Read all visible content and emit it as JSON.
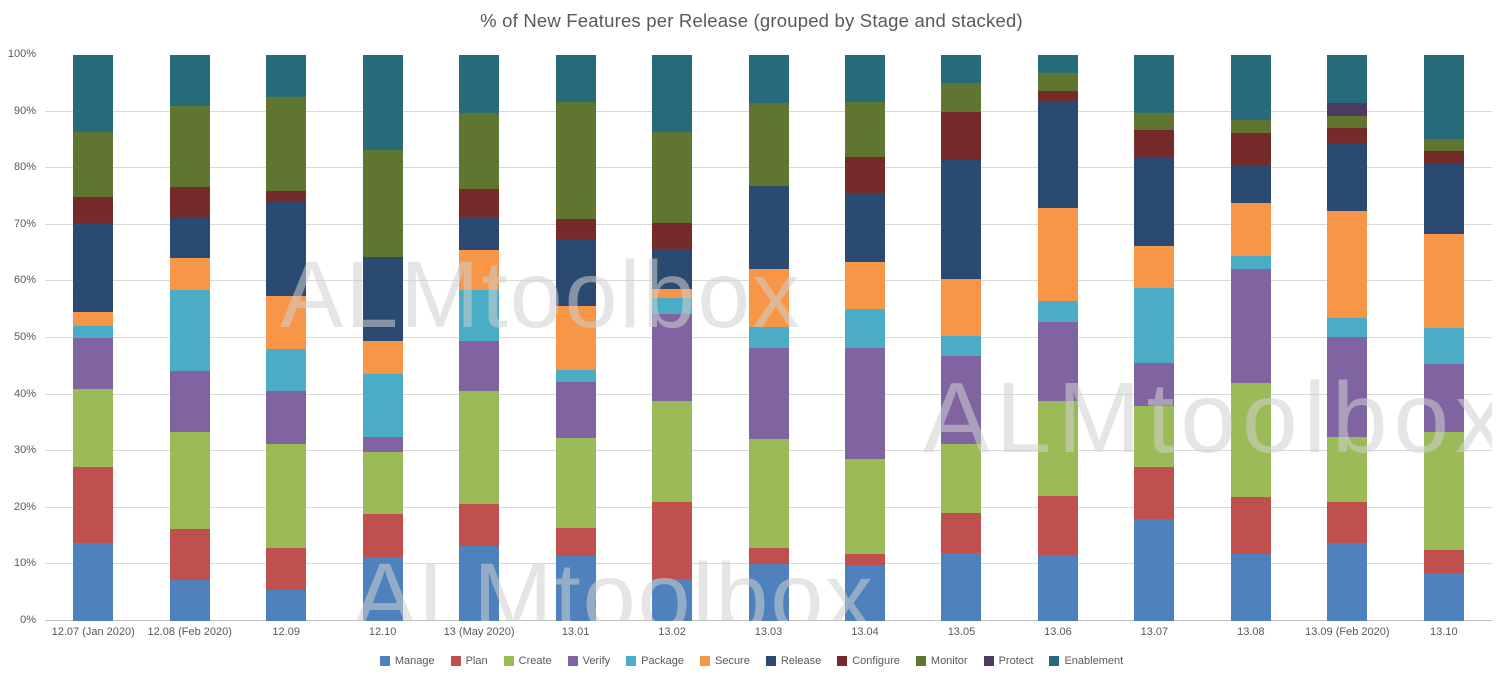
{
  "title": "% of New Features per Release (grouped by Stage and stacked)",
  "watermark_text": "ALMtoolbox",
  "axes": {
    "y_tick_labels": [
      "0%",
      "10%",
      "20%",
      "30%",
      "40%",
      "50%",
      "60%",
      "70%",
      "80%",
      "90%",
      "100%"
    ],
    "y_tick_step": 10
  },
  "chart_data": {
    "type": "bar",
    "stacked": true,
    "units": "percent_of_total",
    "title": "% of New Features per Release (grouped by Stage and stacked)",
    "ylim": [
      0,
      100
    ],
    "grid": true,
    "legend_position": "bottom",
    "categories": [
      "12.07 (Jan 2020)",
      "12.08 (Feb 2020)",
      "12.09",
      "12.10",
      "13 (May 2020)",
      "13.01",
      "13.02",
      "13.03",
      "13.04",
      "13.05",
      "13.06",
      "13.07",
      "13.08",
      "13.09 (Feb 2020)",
      "13.10"
    ],
    "series": [
      {
        "name": "Manage",
        "color": "#4F81BD",
        "values": [
          13.7,
          7.3,
          5.5,
          11.3,
          13.3,
          11.4,
          7.5,
          10.0,
          9.9,
          12.0,
          11.7,
          18.0,
          11.8,
          13.8,
          8.4
        ]
      },
      {
        "name": "Plan",
        "color": "#C0504D",
        "values": [
          13.5,
          8.9,
          7.4,
          7.6,
          7.3,
          5.0,
          13.5,
          2.9,
          1.9,
          7.0,
          10.3,
          9.2,
          10.2,
          7.3,
          4.2
        ]
      },
      {
        "name": "Create",
        "color": "#9BBB59",
        "values": [
          13.8,
          17.2,
          18.4,
          11.0,
          20.1,
          16.0,
          17.8,
          19.3,
          16.8,
          12.2,
          16.8,
          10.8,
          20.0,
          11.5,
          20.8
        ]
      },
      {
        "name": "Verify",
        "color": "#8064A2",
        "values": [
          9.0,
          10.8,
          9.4,
          2.6,
          8.7,
          9.9,
          15.5,
          16.0,
          19.7,
          15.7,
          14.0,
          7.6,
          20.2,
          17.6,
          12.0
        ]
      },
      {
        "name": "Package",
        "color": "#4BACC6",
        "values": [
          2.2,
          14.3,
          7.4,
          11.2,
          9.0,
          2.0,
          2.7,
          3.8,
          6.8,
          3.4,
          3.7,
          13.2,
          2.3,
          3.4,
          6.3
        ]
      },
      {
        "name": "Secure",
        "color": "#F79646",
        "values": [
          2.4,
          5.6,
          9.3,
          5.7,
          7.1,
          11.3,
          1.6,
          10.2,
          8.4,
          10.2,
          16.5,
          7.5,
          9.4,
          18.9,
          16.7
        ]
      },
      {
        "name": "Release",
        "color": "#2B4A72",
        "values": [
          15.8,
          7.1,
          16.7,
          14.9,
          5.9,
          11.9,
          7.2,
          14.7,
          11.9,
          21.0,
          18.8,
          15.5,
          6.7,
          11.9,
          12.4
        ]
      },
      {
        "name": "Configure",
        "color": "#752B29",
        "values": [
          4.6,
          5.5,
          1.9,
          0,
          4.9,
          3.6,
          4.5,
          0,
          6.6,
          8.5,
          1.8,
          5.0,
          5.7,
          2.7,
          2.2
        ]
      },
      {
        "name": "Monitor",
        "color": "#5F7530",
        "values": [
          11.4,
          14.3,
          16.6,
          18.9,
          13.5,
          20.6,
          16.1,
          14.6,
          9.7,
          5.1,
          3.3,
          3.0,
          2.3,
          2.2,
          2.2
        ]
      },
      {
        "name": "Protect",
        "color": "#4C3A63",
        "values": [
          0,
          0,
          0,
          0,
          0,
          0,
          0,
          0,
          0,
          0,
          0,
          0,
          0,
          2.3,
          0
        ]
      },
      {
        "name": "Enablement",
        "color": "#266A7C",
        "values": [
          13.6,
          9.0,
          7.4,
          16.8,
          10.2,
          8.3,
          13.6,
          8.5,
          8.3,
          4.9,
          3.1,
          10.2,
          11.4,
          8.4,
          14.8
        ]
      }
    ]
  }
}
